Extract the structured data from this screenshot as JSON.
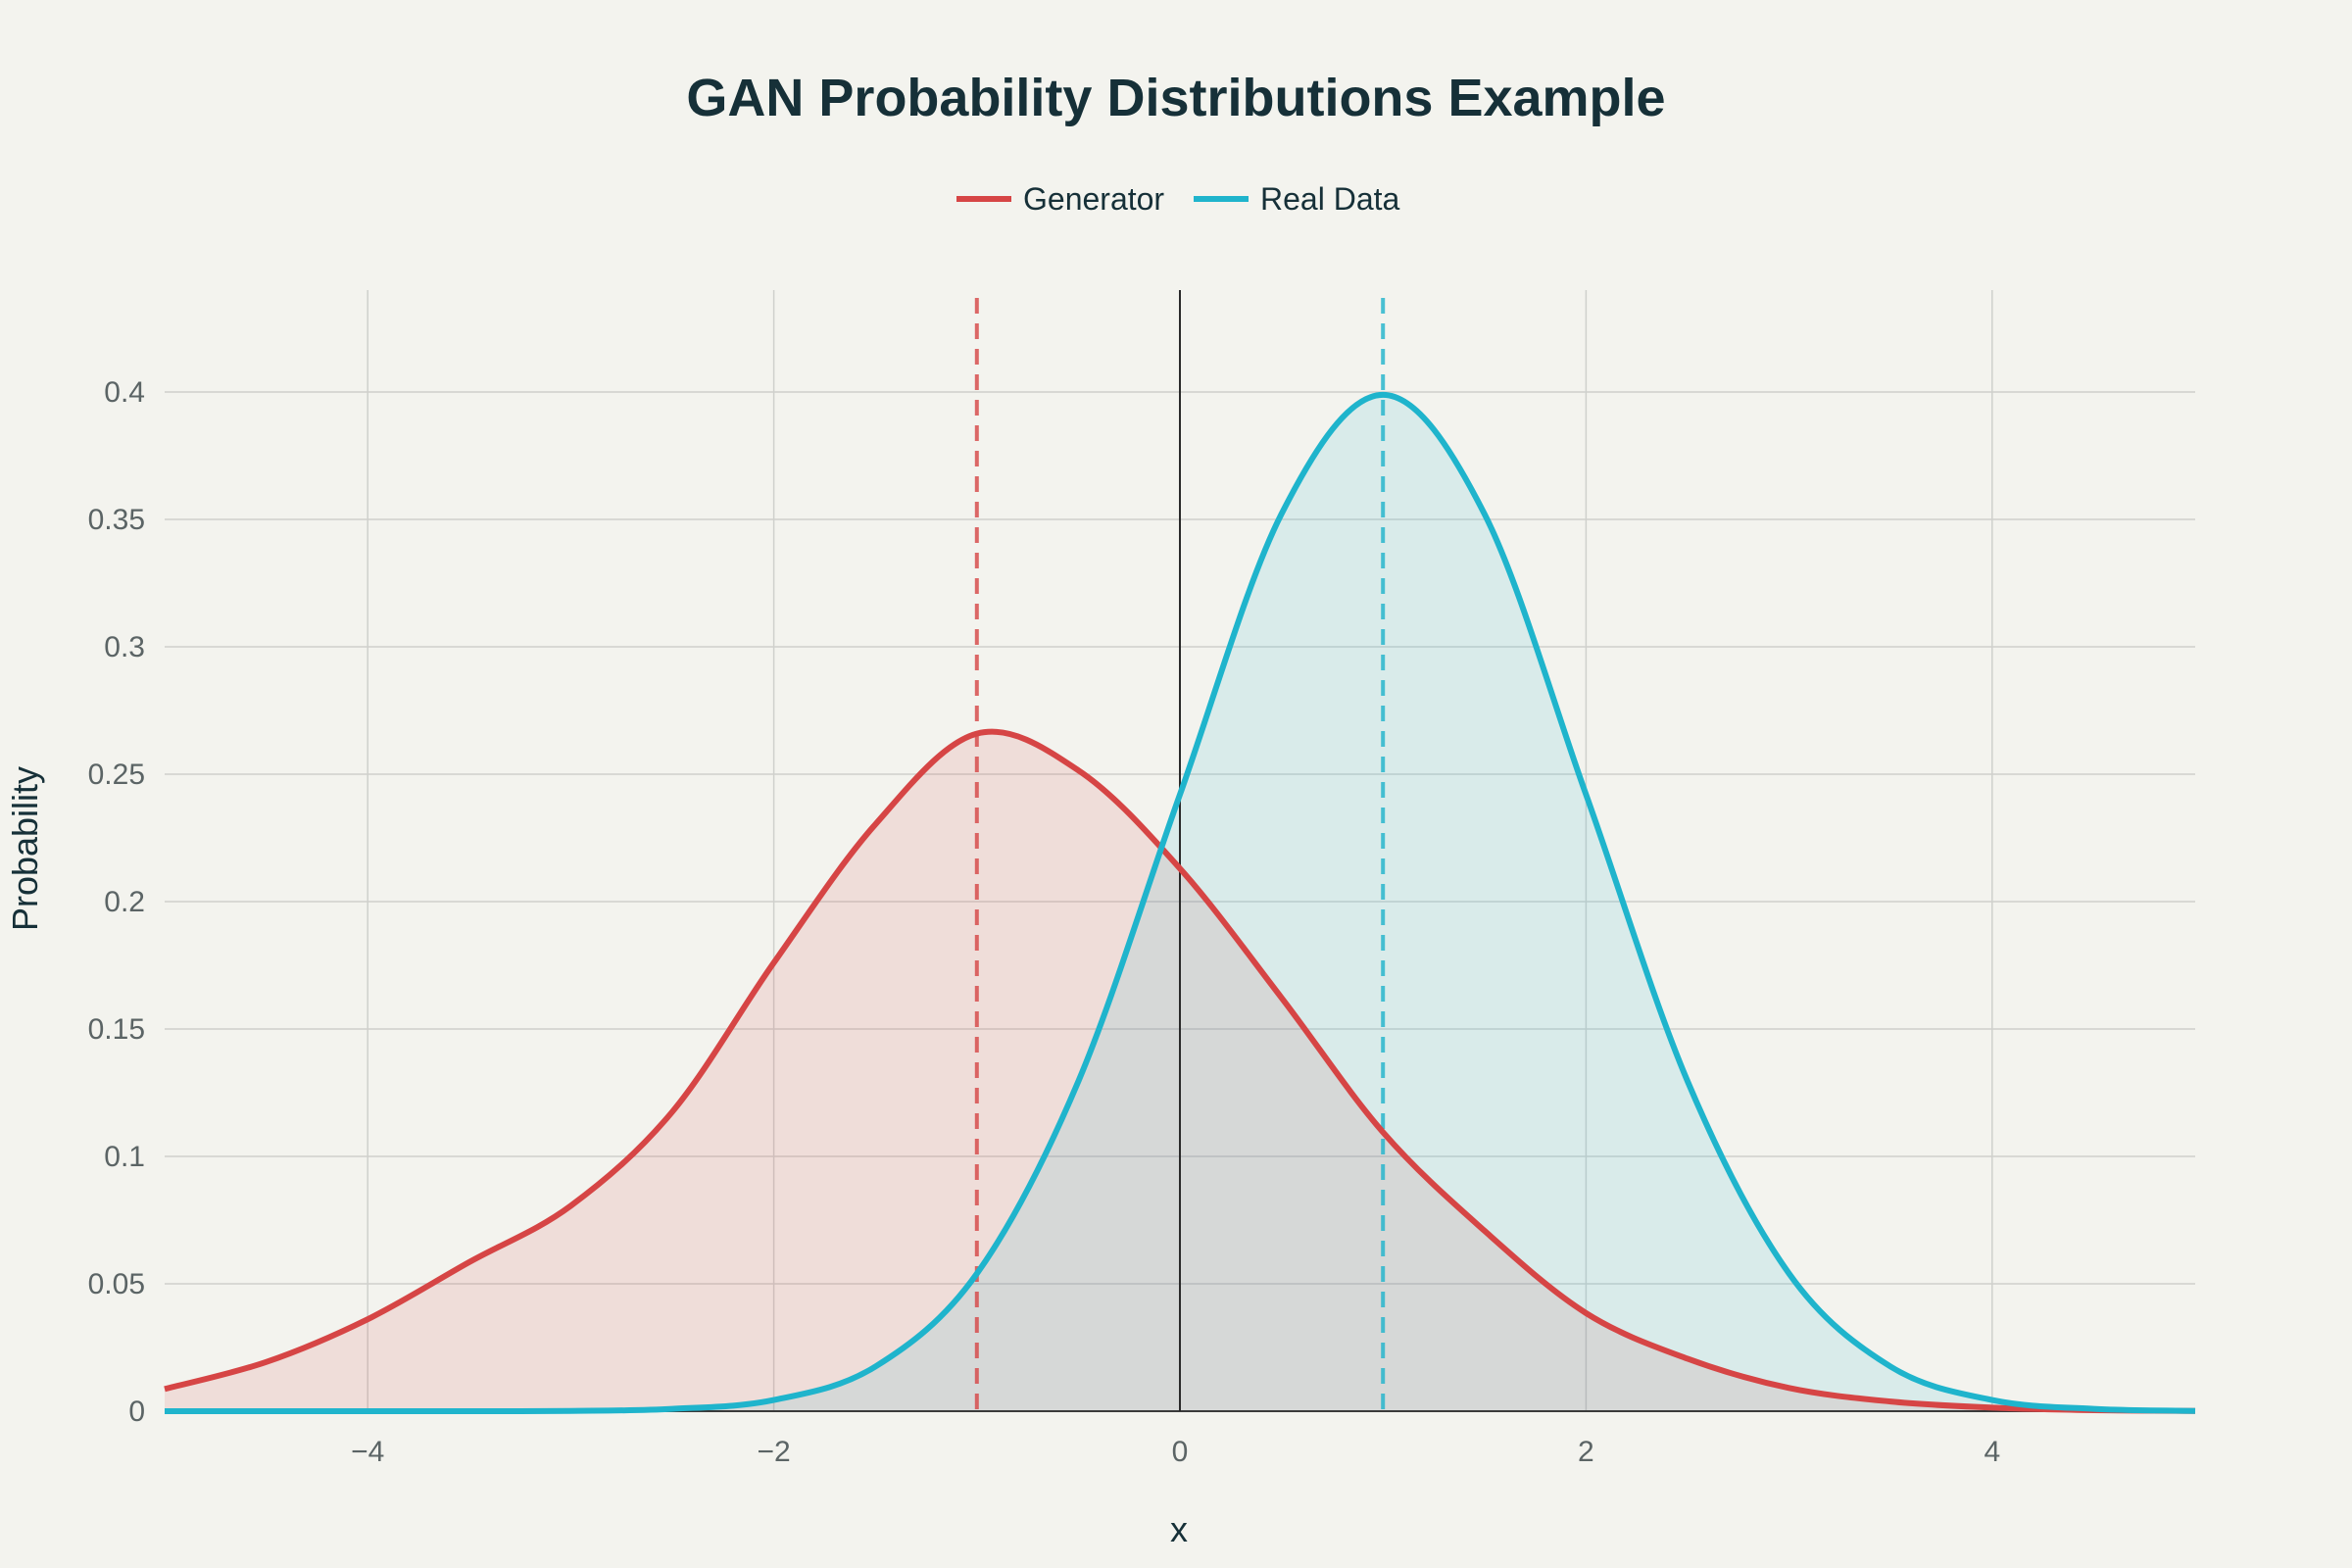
{
  "chart_data": {
    "type": "line",
    "title": "GAN Probability Distributions Example",
    "xlabel": "x",
    "ylabel": "Probability",
    "xlim": [
      -5,
      5
    ],
    "ylim": [
      0,
      0.44
    ],
    "xticks": [
      -4,
      -2,
      0,
      2,
      4
    ],
    "xtick_labels": [
      "−4",
      "−2",
      "0",
      "2",
      "4"
    ],
    "yticks": [
      0,
      0.05,
      0.1,
      0.15,
      0.2,
      0.25,
      0.3,
      0.35,
      0.4
    ],
    "ytick_labels": [
      "0",
      "0.05",
      "0.1",
      "0.15",
      "0.2",
      "0.25",
      "0.3",
      "0.35",
      "0.4"
    ],
    "grid": true,
    "legend_position": "top-center",
    "series": [
      {
        "name": "Generator",
        "color": "#d64545",
        "fill": "rgba(214,69,69,0.12)",
        "mean_line_x": -1,
        "x": [
          -5,
          -4.5,
          -4,
          -3.5,
          -3,
          -2.5,
          -2,
          -1.5,
          -1,
          -0.5,
          0,
          0.5,
          1,
          1.5,
          2,
          2.5,
          3,
          3.5,
          4,
          4.5,
          5
        ],
        "y": [
          0.0087,
          0.0193,
          0.0361,
          0.0585,
          0.0806,
          0.1175,
          0.176,
          0.2303,
          0.2659,
          0.2515,
          0.213,
          0.1623,
          0.1095,
          0.0708,
          0.0385,
          0.0206,
          0.0091,
          0.0038,
          0.0014,
          0.0004,
          0.0001
        ]
      },
      {
        "name": "Real Data",
        "color": "#1fb4cc",
        "fill": "rgba(31,180,204,0.12)",
        "mean_line_x": 1,
        "x": [
          -5,
          -4.5,
          -4,
          -3.5,
          -3,
          -2.5,
          -2,
          -1.5,
          -1,
          -0.5,
          0,
          0.5,
          1,
          1.5,
          2,
          2.5,
          3,
          3.5,
          4,
          4.5,
          5
        ],
        "y": [
          0.0,
          0.0,
          0.0,
          0.0,
          0.0001,
          0.0009,
          0.0044,
          0.0175,
          0.054,
          0.1295,
          0.242,
          0.3521,
          0.3989,
          0.3521,
          0.242,
          0.1295,
          0.054,
          0.0175,
          0.0044,
          0.0009,
          0.0001
        ]
      }
    ]
  }
}
